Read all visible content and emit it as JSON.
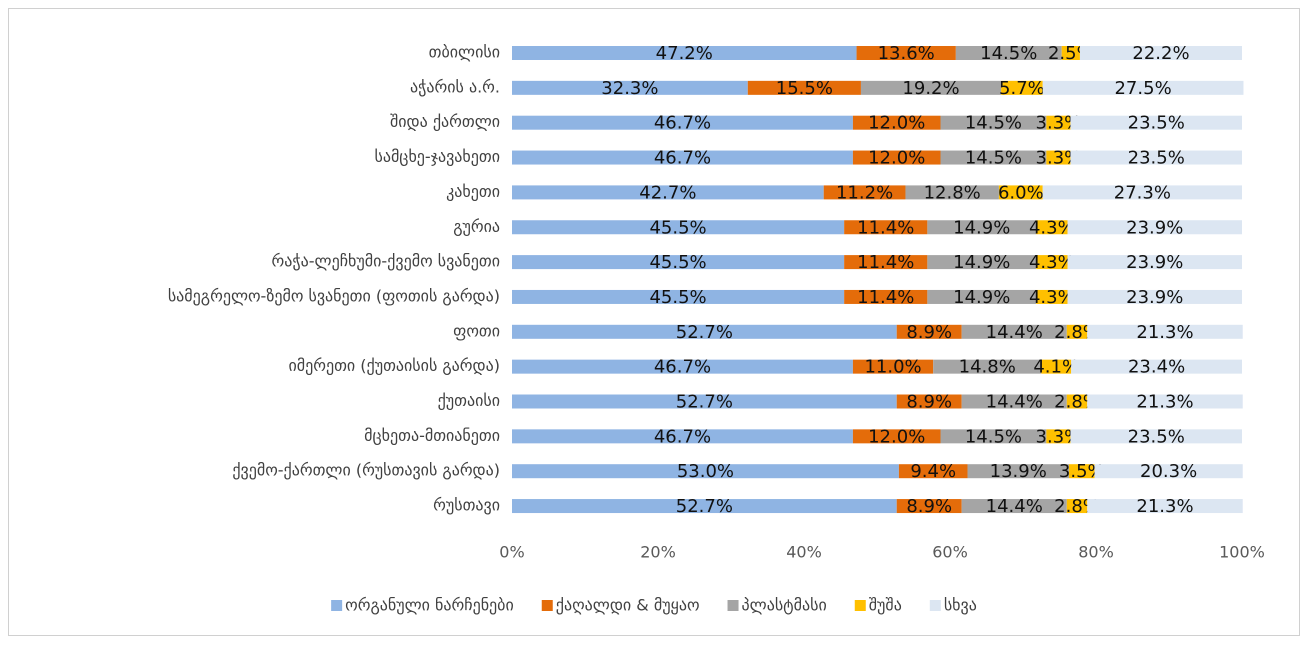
{
  "chart_data": {
    "type": "stacked_barh",
    "categories": [
      "თბილისი",
      "აჭარის ა.რ.",
      "შიდა ქართლი",
      "სამცხე-ჯავახეთი",
      "კახეთი",
      "გურია",
      "რაჭა-ლეჩხუმი-ქვემო სვანეთი",
      "სამეგრელო-ზემო სვანეთი (ფოთის გარდა)",
      "ფოთი",
      "იმერეთი (ქუთაისის გარდა)",
      "ქუთაისი",
      "მცხეთა-მთიანეთი",
      "ქვემო-ქართლი (რუსთავის გარდა)",
      "რუსთავი"
    ],
    "series": [
      {
        "name": "ორგანული ნარჩენები",
        "color": "#8fb4e3",
        "values": [
          47.2,
          32.3,
          46.7,
          46.7,
          42.7,
          45.5,
          45.5,
          45.5,
          52.7,
          46.7,
          52.7,
          46.7,
          53.0,
          52.7
        ],
        "value_labels": [
          "47.2%",
          "32.3%",
          "46.7%",
          "46.7%",
          "42.7%",
          "45.5%",
          "45.5%",
          "45.5%",
          "52.7%",
          "46.7%",
          "52.7%",
          "46.7%",
          "53.0%",
          "52.7%"
        ]
      },
      {
        "name": "ქაღალდი & მუყაო",
        "color": "#e46c0a",
        "values": [
          13.6,
          15.5,
          12.0,
          12.0,
          11.2,
          11.4,
          11.4,
          11.4,
          8.9,
          11.0,
          8.9,
          12.0,
          9.4,
          8.9
        ],
        "value_labels": [
          "13.6%",
          "15.5%",
          "12.0%",
          "12.0%",
          "11.2%",
          "11.4%",
          "11.4%",
          "11.4%",
          "8.9%",
          "11.0%",
          "8.9%",
          "12.0%",
          "9.4%",
          "8.9%"
        ]
      },
      {
        "name": "პლასტმასი",
        "color": "#a5a5a5",
        "values": [
          14.5,
          19.2,
          14.5,
          14.5,
          12.8,
          14.9,
          14.9,
          14.9,
          14.4,
          14.8,
          14.4,
          14.5,
          13.9,
          14.4
        ],
        "value_labels": [
          "14.5%",
          "19.2%",
          "14.5%",
          "14.5%",
          "12.8%",
          "14.9%",
          "14.9%",
          "14.9%",
          "14.4%",
          "14.8%",
          "14.4%",
          "14.5%",
          "13.9%",
          "14.4%"
        ]
      },
      {
        "name": "შუშა",
        "color": "#ffc000",
        "values": [
          2.5,
          5.7,
          3.3,
          3.3,
          6.0,
          4.3,
          4.3,
          4.3,
          2.8,
          4.1,
          2.8,
          3.3,
          3.5,
          2.8
        ],
        "value_labels": [
          "2.5%",
          "5.7%",
          "3.3%",
          "3.3%",
          "6.0%",
          "4.3%",
          "4.3%",
          "4.3%",
          "2.8%",
          "4.1%",
          "2.8%",
          "3.3%",
          "3.5%",
          "2.8%"
        ]
      },
      {
        "name": "სხვა",
        "color": "#dce6f2",
        "values": [
          22.2,
          27.5,
          23.5,
          23.5,
          27.3,
          23.9,
          23.9,
          23.9,
          21.3,
          23.4,
          21.3,
          23.5,
          20.3,
          21.3
        ],
        "value_labels": [
          "22.2%",
          "27.5%",
          "23.5%",
          "23.5%",
          "27.3%",
          "23.9%",
          "23.9%",
          "23.9%",
          "21.3%",
          "23.4%",
          "21.3%",
          "23.5%",
          "20.3%",
          "21.3%"
        ]
      }
    ],
    "xlim": [
      0,
      100
    ],
    "xticks": [
      {
        "value": 0,
        "label": "0%"
      },
      {
        "value": 20,
        "label": "20%"
      },
      {
        "value": 40,
        "label": "40%"
      },
      {
        "value": 60,
        "label": "60%"
      },
      {
        "value": 80,
        "label": "80%"
      },
      {
        "value": 100,
        "label": "100%"
      }
    ],
    "grid": false,
    "legend": "bottom"
  }
}
